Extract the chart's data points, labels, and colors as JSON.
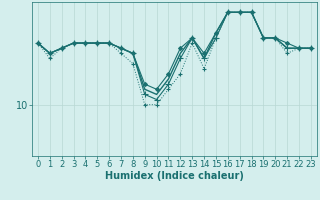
{
  "bg_color": "#d4eeed",
  "grid_color": "#b8d8d4",
  "line_color": "#1a7070",
  "xlabel": "Humidex (Indice chaleur)",
  "xlabel_fontsize": 7,
  "tick_fontsize": 6,
  "ytick_label": "10",
  "ytick_value": 10,
  "xlim": [
    -0.5,
    23.5
  ],
  "ylim": [
    0,
    30
  ],
  "series": [
    {
      "x": [
        0,
        1,
        2,
        3,
        4,
        5,
        6,
        7,
        8,
        9,
        10,
        11,
        12,
        13,
        14,
        15,
        16,
        17,
        18,
        19,
        20,
        21,
        22,
        23
      ],
      "y": [
        22,
        20,
        21,
        22,
        22,
        22,
        22,
        21,
        20,
        14,
        13,
        16,
        21,
        23,
        20,
        24,
        28,
        28,
        28,
        23,
        23,
        22,
        21,
        21
      ],
      "style": "-",
      "marker": "D",
      "markersize": 2,
      "linewidth": 0.8,
      "zorder": 3
    },
    {
      "x": [
        0,
        1,
        2,
        3,
        4,
        5,
        6,
        7,
        8,
        9,
        10,
        11,
        12,
        13,
        14,
        15,
        16,
        17,
        18,
        19,
        20,
        21,
        22,
        23
      ],
      "y": [
        22,
        20,
        21,
        22,
        22,
        22,
        22,
        21,
        20,
        12,
        11,
        14,
        19,
        23,
        19,
        23,
        28,
        28,
        28,
        23,
        23,
        21,
        21,
        21
      ],
      "style": "-",
      "marker": "+",
      "markersize": 4,
      "linewidth": 0.8,
      "zorder": 3
    },
    {
      "x": [
        0,
        1,
        2,
        3,
        4,
        5,
        6,
        7,
        8,
        9,
        10,
        11,
        12,
        13,
        14,
        15,
        16,
        17,
        18,
        19,
        20,
        21,
        22,
        23
      ],
      "y": [
        22,
        20,
        21,
        22,
        22,
        22,
        22,
        21,
        20,
        13,
        12,
        15,
        20,
        23,
        19,
        24,
        28,
        28,
        28,
        23,
        23,
        21,
        21,
        21
      ],
      "style": "-",
      "marker": null,
      "markersize": 0,
      "linewidth": 1.0,
      "zorder": 2
    },
    {
      "x": [
        0,
        1,
        2,
        3,
        4,
        5,
        6,
        7,
        8,
        9,
        10,
        11,
        12,
        13,
        14,
        15,
        16,
        17,
        18,
        19,
        20,
        21,
        22,
        23
      ],
      "y": [
        22,
        19,
        21,
        22,
        22,
        22,
        22,
        20,
        18,
        10,
        10,
        13,
        16,
        22,
        17,
        23,
        28,
        28,
        28,
        23,
        23,
        20,
        21,
        21
      ],
      "style": ":",
      "marker": "+",
      "markersize": 3,
      "linewidth": 0.7,
      "zorder": 2
    }
  ]
}
